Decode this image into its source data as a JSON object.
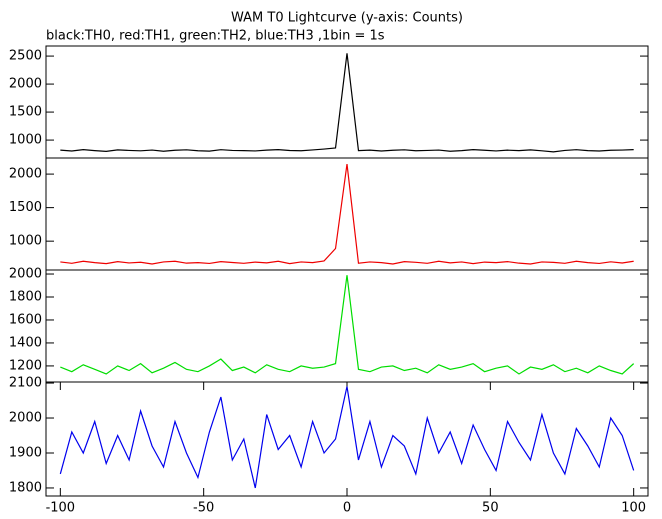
{
  "chart_data": [
    {
      "type": "line",
      "title": "WAM T0 Lightcurve (y-axis: Counts)",
      "subtitle": "black:TH0, red:TH1, green:TH2, blue:TH3 ,1bin = 1s",
      "x": [
        -100,
        -96,
        -92,
        -88,
        -84,
        -80,
        -76,
        -72,
        -68,
        -64,
        -60,
        -56,
        -52,
        -48,
        -44,
        -40,
        -36,
        -32,
        -28,
        -24,
        -20,
        -16,
        -12,
        -8,
        -4,
        0,
        4,
        8,
        12,
        16,
        20,
        24,
        28,
        32,
        36,
        40,
        44,
        48,
        52,
        56,
        60,
        64,
        68,
        72,
        76,
        80,
        84,
        88,
        92,
        96,
        100
      ],
      "series": [
        {
          "color": "#000000",
          "values": [
            820,
            805,
            830,
            812,
            798,
            825,
            815,
            808,
            822,
            800,
            818,
            826,
            810,
            803,
            828,
            815,
            812,
            806,
            820,
            830,
            814,
            809,
            824,
            840,
            860,
            2550,
            812,
            820,
            805,
            818,
            826,
            810,
            815,
            822,
            800,
            812,
            830,
            818,
            806,
            820,
            812,
            825,
            808,
            790,
            815,
            828,
            812,
            805,
            818,
            822,
            830
          ]
        }
      ],
      "xlim": [
        -105,
        105
      ],
      "ylim": [
        680,
        2680
      ],
      "yticks": [
        1000,
        1500,
        2000,
        2500
      ]
    },
    {
      "type": "line",
      "x": [
        -100,
        -96,
        -92,
        -88,
        -84,
        -80,
        -76,
        -72,
        -68,
        -64,
        -60,
        -56,
        -52,
        -48,
        -44,
        -40,
        -36,
        -32,
        -28,
        -24,
        -20,
        -16,
        -12,
        -8,
        -4,
        0,
        4,
        8,
        12,
        16,
        20,
        24,
        28,
        32,
        36,
        40,
        44,
        48,
        52,
        56,
        60,
        64,
        68,
        72,
        76,
        80,
        84,
        88,
        92,
        96,
        100
      ],
      "series": [
        {
          "color": "#ee0000",
          "values": [
            690,
            670,
            700,
            680,
            665,
            695,
            675,
            685,
            660,
            690,
            700,
            672,
            680,
            668,
            695,
            682,
            670,
            688,
            676,
            700,
            665,
            690,
            680,
            705,
            890,
            2150,
            672,
            690,
            680,
            660,
            695,
            685,
            670,
            700,
            676,
            690,
            665,
            688,
            680,
            695,
            672,
            660,
            690,
            684,
            670,
            700,
            680,
            668,
            692,
            675,
            700
          ]
        }
      ],
      "xlim": [
        -105,
        105
      ],
      "ylim": [
        570,
        2240
      ],
      "yticks": [
        1000,
        1500,
        2000
      ]
    },
    {
      "type": "line",
      "x": [
        -100,
        -96,
        -92,
        -88,
        -84,
        -80,
        -76,
        -72,
        -68,
        -64,
        -60,
        -56,
        -52,
        -48,
        -44,
        -40,
        -36,
        -32,
        -28,
        -24,
        -20,
        -16,
        -12,
        -8,
        -4,
        0,
        4,
        8,
        12,
        16,
        20,
        24,
        28,
        32,
        36,
        40,
        44,
        48,
        52,
        56,
        60,
        64,
        68,
        72,
        76,
        80,
        84,
        88,
        92,
        96,
        100
      ],
      "series": [
        {
          "color": "#00dd00",
          "values": [
            1190,
            1150,
            1210,
            1170,
            1130,
            1200,
            1160,
            1220,
            1140,
            1180,
            1230,
            1170,
            1150,
            1200,
            1260,
            1160,
            1190,
            1140,
            1210,
            1170,
            1150,
            1200,
            1180,
            1190,
            1220,
            1990,
            1170,
            1150,
            1190,
            1200,
            1160,
            1180,
            1140,
            1210,
            1170,
            1190,
            1220,
            1150,
            1180,
            1200,
            1130,
            1190,
            1170,
            1210,
            1150,
            1180,
            1140,
            1200,
            1160,
            1130,
            1220
          ]
        }
      ],
      "xlim": [
        -105,
        105
      ],
      "ylim": [
        1060,
        2035
      ],
      "yticks": [
        1200,
        1400,
        1600,
        1800,
        2000
      ]
    },
    {
      "type": "line",
      "x": [
        -100,
        -96,
        -92,
        -88,
        -84,
        -80,
        -76,
        -72,
        -68,
        -64,
        -60,
        -56,
        -52,
        -48,
        -44,
        -40,
        -36,
        -32,
        -28,
        -24,
        -20,
        -16,
        -12,
        -8,
        -4,
        0,
        4,
        8,
        12,
        16,
        20,
        24,
        28,
        32,
        36,
        40,
        44,
        48,
        52,
        56,
        60,
        64,
        68,
        72,
        76,
        80,
        84,
        88,
        92,
        96,
        100
      ],
      "series": [
        {
          "color": "#0000ee",
          "values": [
            1840,
            1960,
            1900,
            1990,
            1870,
            1950,
            1880,
            2020,
            1920,
            1860,
            1990,
            1900,
            1830,
            1960,
            2060,
            1880,
            1940,
            1800,
            2010,
            1910,
            1950,
            1860,
            1990,
            1900,
            1940,
            2090,
            1880,
            1990,
            1860,
            1950,
            1920,
            1840,
            2000,
            1900,
            1960,
            1870,
            1980,
            1910,
            1850,
            1990,
            1930,
            1880,
            2010,
            1900,
            1840,
            1970,
            1920,
            1860,
            2000,
            1950,
            1850
          ]
        }
      ],
      "xlim": [
        -105,
        105
      ],
      "ylim": [
        1777,
        2103
      ],
      "yticks": [
        1800,
        1900,
        2000,
        2100
      ],
      "xticks": [
        -100,
        -50,
        0,
        50,
        100
      ]
    }
  ]
}
